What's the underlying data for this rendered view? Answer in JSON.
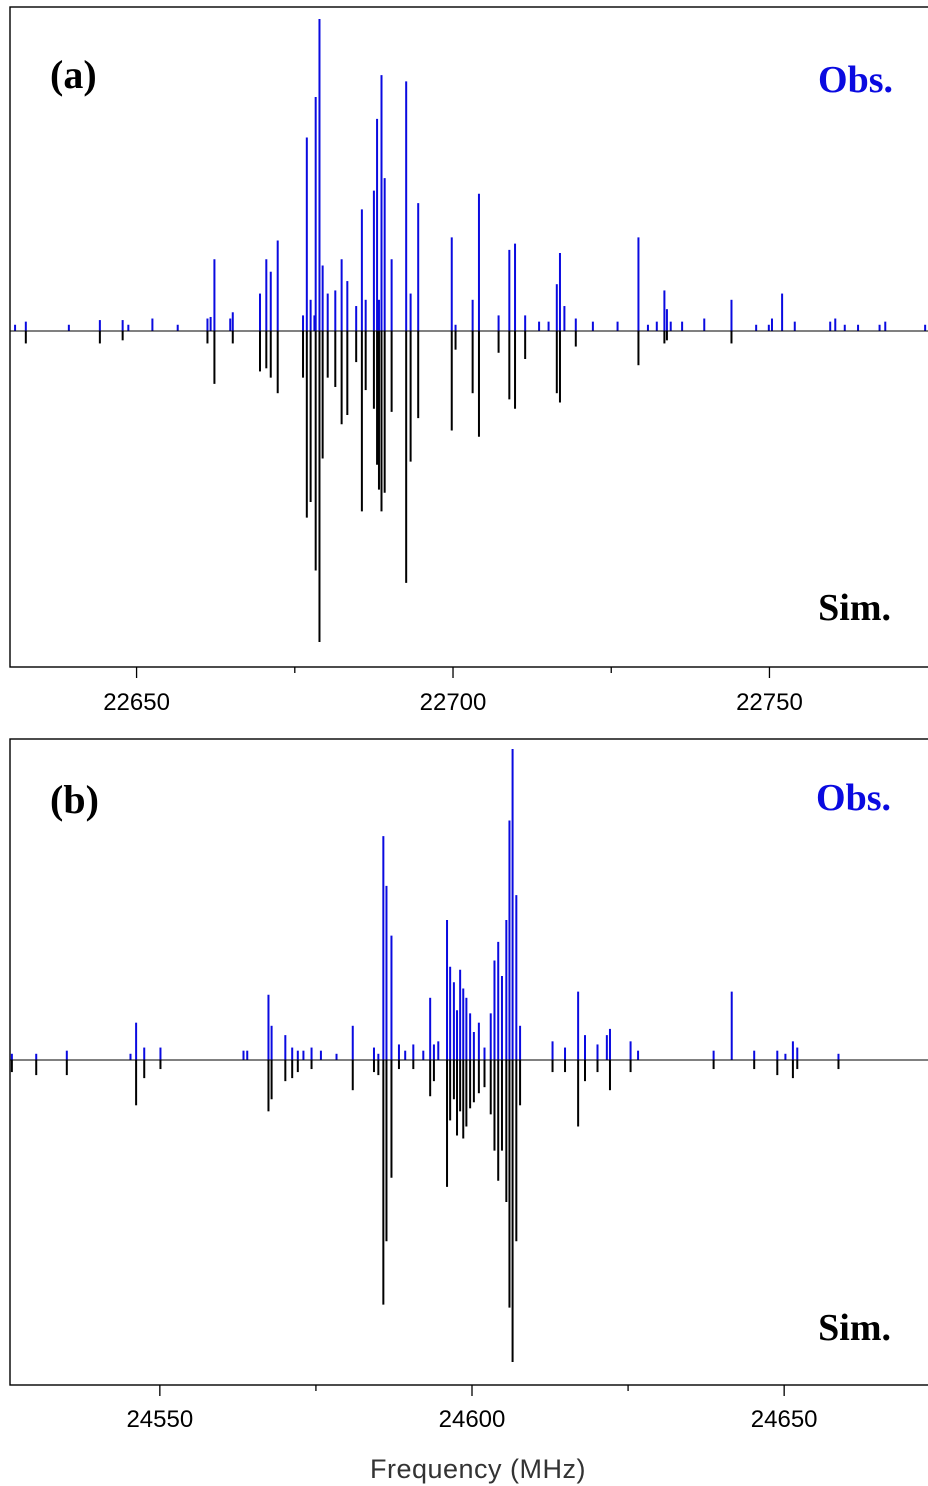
{
  "colors": {
    "observed": "#0a0ae0",
    "simulated": "#000000"
  },
  "xlabel": "Frequency (MHz)",
  "chart_data": [
    {
      "type": "stick-spectrum",
      "panel_label": "(a)",
      "obs_label": "Obs.",
      "sim_label": "Sim.",
      "xlim": [
        22630,
        22776
      ],
      "ylim": [
        -1.0,
        1.0
      ],
      "major_ticks": [
        22650,
        22700,
        22750
      ],
      "tick_labels": [
        "22650",
        "22700",
        "22750"
      ],
      "minor_ticks": [
        22625,
        22675,
        22725,
        22775
      ],
      "observed": [
        [
          22630.8,
          0.02
        ],
        [
          22632.5,
          0.03
        ],
        [
          22639.3,
          0.02
        ],
        [
          22644.2,
          0.035
        ],
        [
          22647.8,
          0.035
        ],
        [
          22648.7,
          0.02
        ],
        [
          22652.5,
          0.04
        ],
        [
          22656.5,
          0.02
        ],
        [
          22661.2,
          0.04
        ],
        [
          22661.7,
          0.045
        ],
        [
          22662.3,
          0.23
        ],
        [
          22664.8,
          0.04
        ],
        [
          22665.2,
          0.06
        ],
        [
          22669.5,
          0.12
        ],
        [
          22670.5,
          0.23
        ],
        [
          22671.2,
          0.19
        ],
        [
          22672.3,
          0.29
        ],
        [
          22676.3,
          0.05
        ],
        [
          22676.9,
          0.62
        ],
        [
          22677.5,
          0.1
        ],
        [
          22678.1,
          0.05
        ],
        [
          22678.3,
          0.75
        ],
        [
          22678.9,
          1.0
        ],
        [
          22679.4,
          0.21
        ],
        [
          22680.2,
          0.12
        ],
        [
          22681.4,
          0.13
        ],
        [
          22682.4,
          0.23
        ],
        [
          22683.3,
          0.16
        ],
        [
          22684.7,
          0.08
        ],
        [
          22685.6,
          0.39
        ],
        [
          22686.2,
          0.1
        ],
        [
          22687.5,
          0.45
        ],
        [
          22688.0,
          0.68
        ],
        [
          22688.3,
          0.1
        ],
        [
          22688.7,
          0.82
        ],
        [
          22689.2,
          0.49
        ],
        [
          22690.3,
          0.23
        ],
        [
          22692.6,
          0.8
        ],
        [
          22693.3,
          0.12
        ],
        [
          22694.5,
          0.41
        ],
        [
          22699.8,
          0.3
        ],
        [
          22700.4,
          0.02
        ],
        [
          22703.1,
          0.1
        ],
        [
          22704.1,
          0.44
        ],
        [
          22707.2,
          0.05
        ],
        [
          22708.9,
          0.26
        ],
        [
          22709.8,
          0.28
        ],
        [
          22711.4,
          0.05
        ],
        [
          22713.6,
          0.03
        ],
        [
          22715.1,
          0.03
        ],
        [
          22716.4,
          0.15
        ],
        [
          22716.9,
          0.25
        ],
        [
          22717.6,
          0.08
        ],
        [
          22719.4,
          0.04
        ],
        [
          22722.1,
          0.03
        ],
        [
          22726.0,
          0.03
        ],
        [
          22729.3,
          0.3
        ],
        [
          22730.8,
          0.02
        ],
        [
          22732.2,
          0.03
        ],
        [
          22733.4,
          0.13
        ],
        [
          22733.8,
          0.07
        ],
        [
          22734.4,
          0.03
        ],
        [
          22736.2,
          0.03
        ],
        [
          22739.7,
          0.04
        ],
        [
          22744.0,
          0.1
        ],
        [
          22747.9,
          0.02
        ],
        [
          22749.9,
          0.02
        ],
        [
          22750.4,
          0.04
        ],
        [
          22752.0,
          0.12
        ],
        [
          22754.0,
          0.03
        ],
        [
          22759.6,
          0.03
        ],
        [
          22760.4,
          0.04
        ],
        [
          22761.9,
          0.02
        ],
        [
          22764.0,
          0.02
        ],
        [
          22767.4,
          0.02
        ],
        [
          22768.3,
          0.03
        ],
        [
          22774.6,
          0.02
        ],
        [
          22775.4,
          0.02
        ]
      ],
      "simulated": [
        [
          22632.5,
          0.04
        ],
        [
          22644.2,
          0.04
        ],
        [
          22647.8,
          0.03
        ],
        [
          22661.2,
          0.04
        ],
        [
          22662.3,
          0.17
        ],
        [
          22665.2,
          0.04
        ],
        [
          22669.5,
          0.13
        ],
        [
          22670.5,
          0.12
        ],
        [
          22671.2,
          0.15
        ],
        [
          22672.3,
          0.2
        ],
        [
          22676.3,
          0.15
        ],
        [
          22676.9,
          0.6
        ],
        [
          22677.5,
          0.55
        ],
        [
          22678.3,
          0.77
        ],
        [
          22678.9,
          1.0
        ],
        [
          22679.4,
          0.41
        ],
        [
          22680.2,
          0.15
        ],
        [
          22681.4,
          0.18
        ],
        [
          22682.4,
          0.3
        ],
        [
          22683.3,
          0.27
        ],
        [
          22684.7,
          0.1
        ],
        [
          22685.6,
          0.58
        ],
        [
          22686.2,
          0.19
        ],
        [
          22687.5,
          0.25
        ],
        [
          22688.0,
          0.43
        ],
        [
          22688.3,
          0.51
        ],
        [
          22688.7,
          0.58
        ],
        [
          22689.2,
          0.52
        ],
        [
          22690.3,
          0.26
        ],
        [
          22692.6,
          0.81
        ],
        [
          22693.3,
          0.42
        ],
        [
          22694.5,
          0.28
        ],
        [
          22699.8,
          0.32
        ],
        [
          22700.4,
          0.06
        ],
        [
          22703.1,
          0.2
        ],
        [
          22704.1,
          0.34
        ],
        [
          22707.2,
          0.07
        ],
        [
          22708.9,
          0.22
        ],
        [
          22709.8,
          0.25
        ],
        [
          22711.4,
          0.09
        ],
        [
          22716.4,
          0.2
        ],
        [
          22716.9,
          0.23
        ],
        [
          22719.4,
          0.05
        ],
        [
          22729.3,
          0.11
        ],
        [
          22733.4,
          0.04
        ],
        [
          22733.8,
          0.03
        ],
        [
          22744.0,
          0.04
        ]
      ]
    },
    {
      "type": "stick-spectrum",
      "panel_label": "(b)",
      "obs_label": "Obs.",
      "sim_label": "Sim.",
      "xlim": [
        24526,
        24674
      ],
      "ylim": [
        -1.0,
        1.0
      ],
      "major_ticks": [
        24550,
        24600,
        24650
      ],
      "tick_labels": [
        "24550",
        "24600",
        "24650"
      ],
      "minor_ticks": [
        24525,
        24575,
        24625
      ],
      "observed": [
        [
          24526.3,
          0.02
        ],
        [
          24530.2,
          0.02
        ],
        [
          24535.1,
          0.03
        ],
        [
          24545.3,
          0.02
        ],
        [
          24546.2,
          0.12
        ],
        [
          24547.5,
          0.04
        ],
        [
          24550.1,
          0.04
        ],
        [
          24563.4,
          0.03
        ],
        [
          24564.0,
          0.03
        ],
        [
          24567.4,
          0.21
        ],
        [
          24567.9,
          0.11
        ],
        [
          24570.1,
          0.08
        ],
        [
          24571.2,
          0.04
        ],
        [
          24572.1,
          0.03
        ],
        [
          24573.0,
          0.03
        ],
        [
          24574.3,
          0.04
        ],
        [
          24575.8,
          0.03
        ],
        [
          24578.3,
          0.02
        ],
        [
          24580.9,
          0.11
        ],
        [
          24584.3,
          0.04
        ],
        [
          24585.0,
          0.02
        ],
        [
          24585.8,
          0.72
        ],
        [
          24586.3,
          0.56
        ],
        [
          24587.1,
          0.4
        ],
        [
          24588.3,
          0.05
        ],
        [
          24589.3,
          0.03
        ],
        [
          24590.6,
          0.05
        ],
        [
          24592.2,
          0.03
        ],
        [
          24593.3,
          0.2
        ],
        [
          24593.9,
          0.05
        ],
        [
          24594.6,
          0.06
        ],
        [
          24596.0,
          0.45
        ],
        [
          24596.5,
          0.3
        ],
        [
          24597.1,
          0.25
        ],
        [
          24597.6,
          0.16
        ],
        [
          24598.1,
          0.29
        ],
        [
          24598.6,
          0.23
        ],
        [
          24599.1,
          0.2
        ],
        [
          24599.7,
          0.15
        ],
        [
          24600.3,
          0.09
        ],
        [
          24601.1,
          0.12
        ],
        [
          24602.0,
          0.04
        ],
        [
          24603.0,
          0.15
        ],
        [
          24603.6,
          0.32
        ],
        [
          24604.2,
          0.38
        ],
        [
          24604.8,
          0.27
        ],
        [
          24605.5,
          0.45
        ],
        [
          24606.0,
          0.77
        ],
        [
          24606.5,
          1.0
        ],
        [
          24607.1,
          0.53
        ],
        [
          24607.7,
          0.11
        ],
        [
          24612.9,
          0.06
        ],
        [
          24614.9,
          0.04
        ],
        [
          24617.0,
          0.22
        ],
        [
          24618.1,
          0.08
        ],
        [
          24620.1,
          0.05
        ],
        [
          24621.6,
          0.08
        ],
        [
          24622.1,
          0.1
        ],
        [
          24625.4,
          0.06
        ],
        [
          24626.6,
          0.03
        ],
        [
          24638.7,
          0.03
        ],
        [
          24641.6,
          0.22
        ],
        [
          24645.2,
          0.03
        ],
        [
          24648.9,
          0.03
        ],
        [
          24650.2,
          0.02
        ],
        [
          24651.4,
          0.06
        ],
        [
          24652.1,
          0.04
        ],
        [
          24658.7,
          0.02
        ]
      ],
      "simulated": [
        [
          24526.3,
          0.04
        ],
        [
          24530.2,
          0.05
        ],
        [
          24535.1,
          0.05
        ],
        [
          24546.2,
          0.15
        ],
        [
          24547.5,
          0.06
        ],
        [
          24550.1,
          0.03
        ],
        [
          24567.4,
          0.17
        ],
        [
          24567.9,
          0.13
        ],
        [
          24570.1,
          0.07
        ],
        [
          24571.2,
          0.06
        ],
        [
          24572.1,
          0.04
        ],
        [
          24574.3,
          0.03
        ],
        [
          24580.9,
          0.1
        ],
        [
          24584.3,
          0.04
        ],
        [
          24585.0,
          0.05
        ],
        [
          24585.8,
          0.81
        ],
        [
          24586.3,
          0.6
        ],
        [
          24587.1,
          0.39
        ],
        [
          24588.3,
          0.03
        ],
        [
          24590.6,
          0.03
        ],
        [
          24593.3,
          0.12
        ],
        [
          24593.9,
          0.07
        ],
        [
          24596.0,
          0.42
        ],
        [
          24596.5,
          0.2
        ],
        [
          24597.1,
          0.13
        ],
        [
          24597.6,
          0.25
        ],
        [
          24598.1,
          0.17
        ],
        [
          24598.6,
          0.26
        ],
        [
          24599.1,
          0.22
        ],
        [
          24599.7,
          0.16
        ],
        [
          24600.3,
          0.14
        ],
        [
          24601.1,
          0.11
        ],
        [
          24602.0,
          0.09
        ],
        [
          24603.0,
          0.18
        ],
        [
          24603.6,
          0.3
        ],
        [
          24604.2,
          0.4
        ],
        [
          24604.8,
          0.3
        ],
        [
          24605.5,
          0.47
        ],
        [
          24606.0,
          0.82
        ],
        [
          24606.5,
          1.0
        ],
        [
          24607.1,
          0.6
        ],
        [
          24607.7,
          0.15
        ],
        [
          24612.9,
          0.04
        ],
        [
          24614.9,
          0.04
        ],
        [
          24617.0,
          0.22
        ],
        [
          24618.1,
          0.07
        ],
        [
          24620.1,
          0.04
        ],
        [
          24622.1,
          0.1
        ],
        [
          24625.4,
          0.04
        ],
        [
          24638.7,
          0.03
        ],
        [
          24645.2,
          0.03
        ],
        [
          24648.9,
          0.05
        ],
        [
          24651.4,
          0.06
        ],
        [
          24652.1,
          0.03
        ],
        [
          24658.7,
          0.03
        ]
      ]
    }
  ]
}
